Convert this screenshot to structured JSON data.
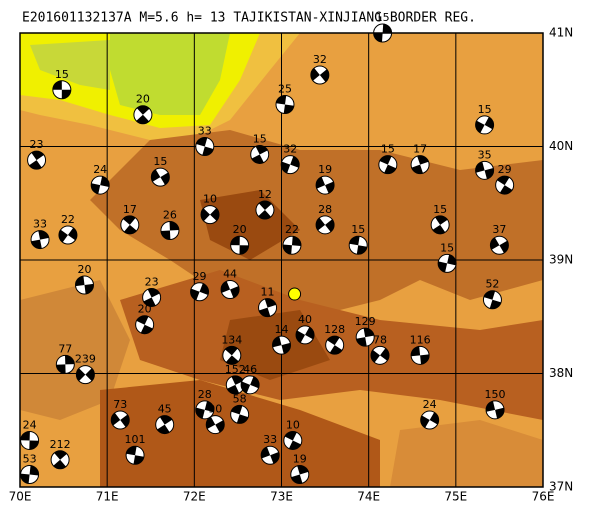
{
  "title": "E201601132137A M=5.6 h= 13 TAJIKISTAN-XINJIANG BORDER REG.",
  "map": {
    "xlim": [
      70,
      76
    ],
    "ylim": [
      37,
      41
    ],
    "xticks": [
      {
        "value": 70,
        "label": "70E"
      },
      {
        "value": 71,
        "label": "71E"
      },
      {
        "value": 72,
        "label": "72E"
      },
      {
        "value": 73,
        "label": "73E"
      },
      {
        "value": 74,
        "label": "74E"
      },
      {
        "value": 75,
        "label": "75E"
      },
      {
        "value": 76,
        "label": "76E"
      }
    ],
    "yticks": [
      {
        "value": 37,
        "label": "37N"
      },
      {
        "value": 38,
        "label": "38N"
      },
      {
        "value": 39,
        "label": "39N"
      },
      {
        "value": 40,
        "label": "40N"
      },
      {
        "value": 41,
        "label": "41N"
      }
    ],
    "epicenter": {
      "lon": 73.15,
      "lat": 38.7,
      "color": "#ffff00"
    },
    "events": [
      {
        "lon": 70.48,
        "lat": 40.5,
        "label": "15"
      },
      {
        "lon": 71.41,
        "lat": 40.28,
        "label": "20"
      },
      {
        "lon": 74.16,
        "lat": 41.0,
        "label": "15"
      },
      {
        "lon": 73.44,
        "lat": 40.63,
        "label": "32"
      },
      {
        "lon": 73.04,
        "lat": 40.37,
        "label": "25"
      },
      {
        "lon": 70.19,
        "lat": 39.88,
        "label": "23"
      },
      {
        "lon": 70.92,
        "lat": 39.66,
        "label": "24"
      },
      {
        "lon": 71.61,
        "lat": 39.73,
        "label": "15"
      },
      {
        "lon": 72.12,
        "lat": 40.0,
        "label": "33"
      },
      {
        "lon": 72.75,
        "lat": 39.93,
        "label": "15"
      },
      {
        "lon": 73.1,
        "lat": 39.84,
        "label": "32"
      },
      {
        "lon": 73.5,
        "lat": 39.66,
        "label": "19"
      },
      {
        "lon": 74.22,
        "lat": 39.84,
        "label": "15"
      },
      {
        "lon": 74.59,
        "lat": 39.84,
        "label": "17"
      },
      {
        "lon": 75.33,
        "lat": 40.19,
        "label": "15"
      },
      {
        "lon": 75.33,
        "lat": 39.79,
        "label": "35"
      },
      {
        "lon": 75.56,
        "lat": 39.66,
        "label": "29"
      },
      {
        "lon": 70.23,
        "lat": 39.18,
        "label": "33"
      },
      {
        "lon": 70.55,
        "lat": 39.22,
        "label": "22"
      },
      {
        "lon": 70.74,
        "lat": 38.78,
        "label": "20"
      },
      {
        "lon": 71.26,
        "lat": 39.31,
        "label": "17"
      },
      {
        "lon": 71.72,
        "lat": 39.26,
        "label": "26"
      },
      {
        "lon": 72.18,
        "lat": 39.4,
        "label": "10"
      },
      {
        "lon": 72.52,
        "lat": 39.13,
        "label": "20"
      },
      {
        "lon": 72.81,
        "lat": 39.44,
        "label": "12"
      },
      {
        "lon": 73.12,
        "lat": 39.13,
        "label": "22"
      },
      {
        "lon": 73.5,
        "lat": 39.31,
        "label": "28"
      },
      {
        "lon": 73.88,
        "lat": 39.13,
        "label": "15"
      },
      {
        "lon": 74.82,
        "lat": 39.31,
        "label": "15"
      },
      {
        "lon": 74.9,
        "lat": 38.97,
        "label": "15"
      },
      {
        "lon": 75.5,
        "lat": 39.13,
        "label": "37"
      },
      {
        "lon": 75.42,
        "lat": 38.65,
        "label": "52"
      },
      {
        "lon": 71.51,
        "lat": 38.67,
        "label": "23"
      },
      {
        "lon": 72.06,
        "lat": 38.72,
        "label": "29"
      },
      {
        "lon": 72.41,
        "lat": 38.74,
        "label": "44"
      },
      {
        "lon": 71.43,
        "lat": 38.43,
        "label": "20"
      },
      {
        "lon": 72.84,
        "lat": 38.58,
        "label": "11"
      },
      {
        "lon": 73.27,
        "lat": 38.34,
        "label": "40"
      },
      {
        "lon": 73.0,
        "lat": 38.25,
        "label": "14"
      },
      {
        "lon": 73.61,
        "lat": 38.25,
        "label": "128"
      },
      {
        "lon": 73.96,
        "lat": 38.32,
        "label": "129"
      },
      {
        "lon": 74.13,
        "lat": 38.16,
        "label": "78"
      },
      {
        "lon": 74.59,
        "lat": 38.16,
        "label": "116"
      },
      {
        "lon": 72.43,
        "lat": 38.16,
        "label": "134"
      },
      {
        "lon": 70.52,
        "lat": 38.08,
        "label": "77"
      },
      {
        "lon": 70.75,
        "lat": 37.99,
        "label": "239"
      },
      {
        "lon": 70.11,
        "lat": 37.41,
        "label": "24"
      },
      {
        "lon": 70.46,
        "lat": 37.24,
        "label": "212"
      },
      {
        "lon": 70.11,
        "lat": 37.11,
        "label": "53"
      },
      {
        "lon": 71.15,
        "lat": 37.59,
        "label": "73"
      },
      {
        "lon": 71.32,
        "lat": 37.28,
        "label": "101"
      },
      {
        "lon": 71.66,
        "lat": 37.55,
        "label": "45"
      },
      {
        "lon": 72.12,
        "lat": 37.68,
        "label": "28"
      },
      {
        "lon": 72.24,
        "lat": 37.55,
        "label": "90"
      },
      {
        "lon": 72.52,
        "lat": 37.64,
        "label": "58"
      },
      {
        "lon": 72.47,
        "lat": 37.9,
        "label": "152"
      },
      {
        "lon": 72.64,
        "lat": 37.9,
        "label": "46"
      },
      {
        "lon": 72.87,
        "lat": 37.28,
        "label": "33"
      },
      {
        "lon": 73.13,
        "lat": 37.41,
        "label": "10"
      },
      {
        "lon": 73.21,
        "lat": 37.11,
        "label": "19"
      },
      {
        "lon": 74.7,
        "lat": 37.59,
        "label": "24"
      },
      {
        "lon": 75.45,
        "lat": 37.68,
        "label": "150"
      }
    ]
  }
}
